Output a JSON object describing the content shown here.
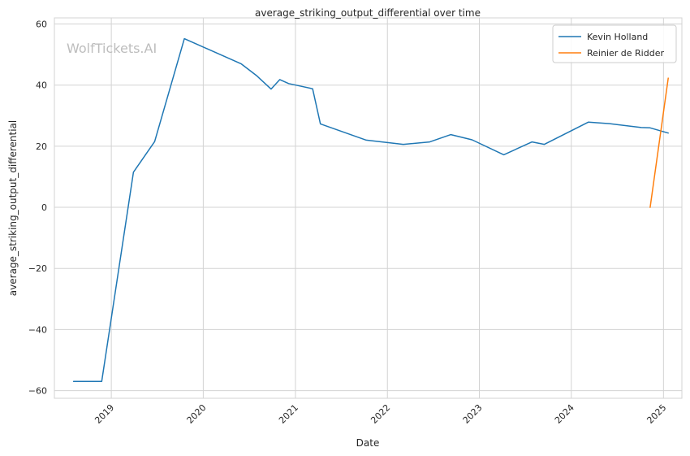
{
  "chart_data": {
    "type": "line",
    "title": "average_striking_output_differential over time",
    "xlabel": "Date",
    "ylabel": "average_striking_output_differential",
    "watermark": "WolfTickets.AI",
    "grid": true,
    "legend_position": "top-right",
    "xlim": [
      "2018-05-20",
      "2025-03-15"
    ],
    "ylim": [
      -62.5,
      62
    ],
    "x_ticks": [
      {
        "value": "2019-01-01",
        "label": "2019"
      },
      {
        "value": "2020-01-01",
        "label": "2020"
      },
      {
        "value": "2021-01-01",
        "label": "2021"
      },
      {
        "value": "2022-01-01",
        "label": "2022"
      },
      {
        "value": "2023-01-01",
        "label": "2023"
      },
      {
        "value": "2024-01-01",
        "label": "2024"
      },
      {
        "value": "2025-01-01",
        "label": "2025"
      }
    ],
    "y_ticks": [
      {
        "value": 60,
        "label": "60"
      },
      {
        "value": 40,
        "label": "40"
      },
      {
        "value": 20,
        "label": "20"
      },
      {
        "value": 0,
        "label": "0"
      },
      {
        "value": -20,
        "label": "−20"
      },
      {
        "value": -40,
        "label": "−40"
      },
      {
        "value": -60,
        "label": "−60"
      }
    ],
    "series": [
      {
        "name": "Kevin Holland",
        "color": "#1f77b4",
        "points": [
          {
            "x": "2018-08-04",
            "y": -57
          },
          {
            "x": "2018-11-24",
            "y": -57
          },
          {
            "x": "2019-03-30",
            "y": 11.5
          },
          {
            "x": "2019-06-22",
            "y": 21.5
          },
          {
            "x": "2019-10-18",
            "y": 55.2
          },
          {
            "x": "2020-05-30",
            "y": 47
          },
          {
            "x": "2020-08-01",
            "y": 43
          },
          {
            "x": "2020-09-26",
            "y": 38.7
          },
          {
            "x": "2020-10-31",
            "y": 41.8
          },
          {
            "x": "2020-12-05",
            "y": 40.5
          },
          {
            "x": "2021-03-10",
            "y": 38.8
          },
          {
            "x": "2021-04-10",
            "y": 27.3
          },
          {
            "x": "2021-10-09",
            "y": 22
          },
          {
            "x": "2022-03-05",
            "y": 20.6
          },
          {
            "x": "2022-06-18",
            "y": 21.4
          },
          {
            "x": "2022-09-10",
            "y": 23.8
          },
          {
            "x": "2022-12-03",
            "y": 22.1
          },
          {
            "x": "2023-04-08",
            "y": 17.2
          },
          {
            "x": "2023-07-29",
            "y": 21.4
          },
          {
            "x": "2023-09-16",
            "y": 20.6
          },
          {
            "x": "2024-03-09",
            "y": 27.9
          },
          {
            "x": "2024-06-01",
            "y": 27.4
          },
          {
            "x": "2024-10-05",
            "y": 26.1
          },
          {
            "x": "2024-11-09",
            "y": 26
          },
          {
            "x": "2025-01-20",
            "y": 24.3
          }
        ]
      },
      {
        "name": "Reinier de Ridder",
        "color": "#ff7f0e",
        "points": [
          {
            "x": "2024-11-09",
            "y": 0
          },
          {
            "x": "2025-01-20",
            "y": 42.3
          }
        ]
      }
    ]
  }
}
